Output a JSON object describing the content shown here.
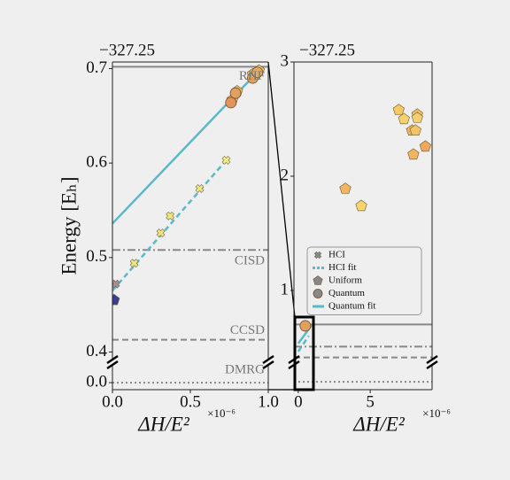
{
  "chart_data": [
    {
      "type": "scatter",
      "offset_label": "−327.25",
      "ylabel": "Energy [Eₕ]",
      "xlabel": "ΔH/E²",
      "xlabel_scale": "×10⁻⁶",
      "xlim": [
        0,
        1
      ],
      "xticks": [
        {
          "value": 0,
          "label": "0.0"
        },
        0.5,
        {
          "value": 1,
          "label": "1.0"
        }
      ],
      "ylim": [
        0.392,
        0.707
      ],
      "yticks": [
        0.7,
        0.6,
        0.5,
        0.4
      ],
      "ylim_lower": [
        -0.0075,
        0.019
      ],
      "yticks_lower": [
        {
          "value": 0,
          "label": "0.0"
        }
      ],
      "references": [
        {
          "label": "RHF",
          "value": 0.702,
          "style": "solid"
        },
        {
          "label": "CISD",
          "value": 0.508,
          "style": "dashdot"
        },
        {
          "label": "CCSD",
          "value": 0.413,
          "style": "dashed"
        },
        {
          "label": "DMRG",
          "value": 0.0,
          "style": "dotted"
        }
      ],
      "series": [
        {
          "marker": "line",
          "dash": "dashed",
          "color": "#5bb8c9",
          "x": [
            0,
            0.73
          ],
          "values": [
            0.465,
            0.603
          ]
        },
        {
          "marker": "line",
          "dash": "solid",
          "color": "#5bb8c9",
          "x": [
            0,
            0.94
          ],
          "values": [
            0.536,
            0.698
          ]
        },
        {
          "marker": "pentagon",
          "colors": [
            "#3a3f8f"
          ],
          "x": [
            0.01
          ],
          "values": [
            0.455
          ]
        },
        {
          "marker": "x",
          "colors": [
            "#a88c94",
            "#f0e37a",
            "#f0e37a",
            "#f2e67c",
            "#f2e67c",
            "#f4ea80"
          ],
          "x": [
            0.02,
            0.14,
            0.31,
            0.37,
            0.56,
            0.73
          ],
          "values": [
            0.472,
            0.494,
            0.526,
            0.544,
            0.573,
            0.603
          ]
        },
        {
          "marker": "pentagon",
          "colors": [
            "#ecc060",
            "#ecc060",
            "#ecc060",
            "#ecc060"
          ],
          "x": [
            0.77,
            0.8,
            0.9,
            0.94
          ],
          "values": [
            0.667,
            0.676,
            0.694,
            0.698
          ]
        },
        {
          "marker": "circle",
          "colors": [
            "#e0955a",
            "#e0a060",
            "#d9a35e",
            "#e0ac62"
          ],
          "x": [
            0.76,
            0.79,
            0.9,
            0.93
          ],
          "values": [
            0.664,
            0.674,
            0.69,
            0.696
          ]
        }
      ]
    },
    {
      "type": "scatter",
      "offset_label": "−327.25",
      "xlabel": "ΔH/E²",
      "xlabel_scale": "×10⁻⁶",
      "xlim": [
        -0.3,
        9.3
      ],
      "xticks": [
        0,
        5
      ],
      "ylim": [
        0.395,
        3
      ],
      "yticks": [
        3,
        2,
        1
      ],
      "ylim_lower": [
        -0.07,
        0.15
      ],
      "yticks_lower": [],
      "references": [
        {
          "value": 0.702,
          "style": "solid"
        },
        {
          "value": 0.508,
          "style": "dashdot"
        },
        {
          "value": 0.413,
          "style": "dashed"
        },
        {
          "value": 0.0,
          "style": "dotted"
        }
      ],
      "legend": "lower left",
      "series": [
        {
          "name": "HCI",
          "marker": "x",
          "color": "#888888",
          "colors": [],
          "x": [],
          "values": []
        },
        {
          "name": "HCI fit",
          "marker": "line",
          "dash": "dashed",
          "color": "#5bb8c9",
          "x": [
            0,
            0.73
          ],
          "values": [
            0.465,
            0.603
          ]
        },
        {
          "name": "Uniform",
          "marker": "pentagon",
          "color": "#888888",
          "colors": [
            "#f5c860",
            "#f7d26c",
            "#f0c060",
            "#f6d070",
            "#f0b460",
            "#f4c468",
            "#f0a85c",
            "#f2b45e",
            "#f2b660",
            "#f5d56c"
          ],
          "x": [
            6.98,
            7.35,
            8.27,
            8.27,
            7.9,
            8.15,
            8.83,
            8.0,
            3.27,
            4.38
          ],
          "values": [
            2.58,
            2.5,
            2.54,
            2.51,
            2.4,
            2.4,
            2.26,
            2.19,
            1.89,
            1.74
          ]
        },
        {
          "name": "Quantum",
          "marker": "circle",
          "color": "#888888",
          "colors": [
            "#e0a060"
          ],
          "x": [
            0.49
          ],
          "values": [
            0.69
          ]
        },
        {
          "name": "Quantum fit",
          "marker": "line",
          "dash": "solid",
          "color": "#5bb8c9",
          "x": [
            0,
            0.94
          ],
          "values": [
            0.536,
            0.698
          ]
        }
      ]
    }
  ]
}
